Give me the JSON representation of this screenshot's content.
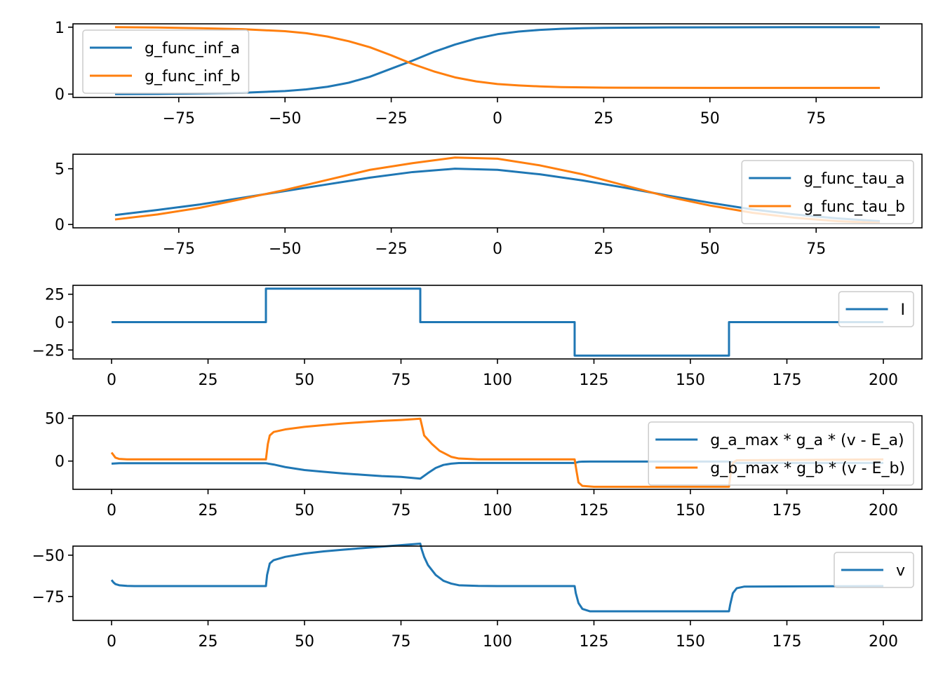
{
  "colors": {
    "series_a": "#1f77b4",
    "series_b": "#ff7f0e"
  },
  "chart_data": [
    {
      "type": "line",
      "title": "",
      "xlabel": "",
      "ylabel": "",
      "xlim": [
        -99.9,
        99.9
      ],
      "ylim": [
        -0.05,
        1.05
      ],
      "xticks": [
        -75,
        -50,
        -25,
        0,
        25,
        50,
        75
      ],
      "xtick_labels": [
        "−75",
        "−50",
        "−25",
        "0",
        "25",
        "50",
        "75"
      ],
      "yticks": [
        0,
        1
      ],
      "ytick_labels": [
        "0",
        "1"
      ],
      "legend_position": "upper left",
      "grid": false,
      "series": [
        {
          "name": "g_func_inf_a",
          "color": "#1f77b4",
          "x": [
            -90,
            -80,
            -70,
            -60,
            -50,
            -45,
            -40,
            -35,
            -30,
            -25,
            -20,
            -15,
            -10,
            -5,
            0,
            5,
            10,
            15,
            20,
            25,
            30,
            40,
            50,
            60,
            70,
            80,
            90
          ],
          "y": [
            0.0,
            0.003,
            0.01,
            0.02,
            0.045,
            0.07,
            0.11,
            0.17,
            0.26,
            0.38,
            0.5,
            0.63,
            0.74,
            0.83,
            0.895,
            0.935,
            0.96,
            0.975,
            0.985,
            0.99,
            0.993,
            0.996,
            0.998,
            0.999,
            1.0,
            1.0,
            1.0
          ]
        },
        {
          "name": "g_func_inf_b",
          "color": "#ff7f0e",
          "x": [
            -90,
            -80,
            -70,
            -60,
            -50,
            -45,
            -40,
            -35,
            -30,
            -25,
            -20,
            -15,
            -10,
            -5,
            0,
            5,
            10,
            15,
            20,
            25,
            30,
            40,
            50,
            60,
            70,
            80,
            90
          ],
          "y": [
            1.0,
            0.995,
            0.985,
            0.97,
            0.94,
            0.91,
            0.86,
            0.79,
            0.7,
            0.58,
            0.45,
            0.34,
            0.25,
            0.19,
            0.15,
            0.13,
            0.115,
            0.105,
            0.1,
            0.097,
            0.095,
            0.094,
            0.093,
            0.093,
            0.093,
            0.093,
            0.093
          ]
        }
      ]
    },
    {
      "type": "line",
      "title": "",
      "xlabel": "",
      "ylabel": "",
      "xlim": [
        -99.9,
        99.9
      ],
      "ylim": [
        -0.3,
        6.3
      ],
      "xticks": [
        -75,
        -50,
        -25,
        0,
        25,
        50,
        75
      ],
      "xtick_labels": [
        "−75",
        "−50",
        "−25",
        "0",
        "25",
        "50",
        "75"
      ],
      "yticks": [
        0,
        5
      ],
      "ytick_labels": [
        "0",
        "5"
      ],
      "legend_position": "upper right",
      "grid": false,
      "series": [
        {
          "name": "g_func_tau_a",
          "color": "#1f77b4",
          "x": [
            -90,
            -80,
            -70,
            -60,
            -50,
            -40,
            -30,
            -20,
            -10,
            0,
            10,
            20,
            30,
            40,
            50,
            60,
            70,
            80,
            90
          ],
          "y": [
            0.85,
            1.3,
            1.8,
            2.4,
            3.0,
            3.6,
            4.2,
            4.7,
            5.0,
            4.9,
            4.5,
            3.95,
            3.3,
            2.6,
            1.95,
            1.35,
            0.9,
            0.55,
            0.3
          ]
        },
        {
          "name": "g_func_tau_b",
          "color": "#ff7f0e",
          "x": [
            -90,
            -80,
            -70,
            -60,
            -50,
            -40,
            -30,
            -20,
            -10,
            0,
            10,
            20,
            30,
            40,
            50,
            60,
            70,
            80,
            90
          ],
          "y": [
            0.45,
            0.9,
            1.5,
            2.3,
            3.1,
            4.0,
            4.9,
            5.5,
            6.0,
            5.9,
            5.3,
            4.5,
            3.5,
            2.5,
            1.7,
            1.05,
            0.6,
            0.3,
            0.15
          ]
        }
      ]
    },
    {
      "type": "line",
      "title": "",
      "xlabel": "",
      "ylabel": "",
      "xlim": [
        -10,
        210
      ],
      "ylim": [
        -33,
        33
      ],
      "xticks": [
        0,
        25,
        50,
        75,
        100,
        125,
        150,
        175,
        200
      ],
      "xtick_labels": [
        "0",
        "25",
        "50",
        "75",
        "100",
        "125",
        "150",
        "175",
        "200"
      ],
      "yticks": [
        -25,
        0,
        25
      ],
      "ytick_labels": [
        "−25",
        "0",
        "25"
      ],
      "legend_position": "upper right",
      "grid": false,
      "series": [
        {
          "name": "I",
          "color": "#1f77b4",
          "x": [
            0,
            40,
            40,
            80,
            80,
            120,
            120,
            160,
            160,
            200
          ],
          "y": [
            0,
            0,
            30,
            30,
            0,
            0,
            -30,
            -30,
            0,
            0
          ]
        }
      ]
    },
    {
      "type": "line",
      "title": "",
      "xlabel": "",
      "ylabel": "",
      "xlim": [
        -10,
        210
      ],
      "ylim": [
        -33,
        53
      ],
      "xticks": [
        0,
        25,
        50,
        75,
        100,
        125,
        150,
        175,
        200
      ],
      "xtick_labels": [
        "0",
        "25",
        "50",
        "75",
        "100",
        "125",
        "150",
        "175",
        "200"
      ],
      "yticks": [
        0,
        50
      ],
      "ytick_labels": [
        "0",
        "50"
      ],
      "legend_position": "upper right",
      "grid": false,
      "series": [
        {
          "name": "g_a_max * g_a * (v - E_a)",
          "color": "#1f77b4",
          "x": [
            0,
            2,
            5,
            40,
            42,
            45,
            50,
            55,
            60,
            65,
            70,
            75,
            80,
            82,
            84,
            86,
            88,
            90,
            95,
            100,
            120,
            121,
            122,
            124,
            160,
            162,
            200
          ],
          "y": [
            -3,
            -2.5,
            -2.5,
            -2.5,
            -4,
            -7,
            -10.5,
            -12.5,
            -14.5,
            -16,
            -17.5,
            -18.5,
            -20.5,
            -14,
            -8,
            -4.5,
            -3,
            -2.3,
            -2.2,
            -2.2,
            -2.2,
            -1,
            -0.6,
            -0.5,
            -0.5,
            -2.2,
            -2.2
          ]
        },
        {
          "name": "g_b_max * g_b * (v - E_b)",
          "color": "#ff7f0e",
          "x": [
            0,
            1,
            2,
            4,
            40,
            40.5,
            41,
            42,
            45,
            50,
            55,
            60,
            65,
            70,
            75,
            80,
            80.5,
            81,
            83,
            85,
            88,
            90,
            95,
            120,
            120.5,
            121,
            122,
            125,
            160,
            160.5,
            161,
            162,
            200
          ],
          "y": [
            10,
            4,
            2.5,
            2,
            2,
            20,
            30,
            34,
            37,
            40,
            42,
            44,
            45.5,
            47,
            48,
            49.5,
            40,
            30,
            20,
            12,
            5,
            3,
            2,
            2,
            -12,
            -25,
            -29,
            -30,
            -30,
            -12,
            -2,
            1,
            2
          ]
        }
      ]
    },
    {
      "type": "line",
      "title": "",
      "xlabel": "",
      "ylabel": "",
      "xlim": [
        -10,
        210
      ],
      "ylim": [
        -89.5,
        -44.5
      ],
      "xticks": [
        0,
        25,
        50,
        75,
        100,
        125,
        150,
        175,
        200
      ],
      "xtick_labels": [
        "0",
        "25",
        "50",
        "75",
        "100",
        "125",
        "150",
        "175",
        "200"
      ],
      "yticks": [
        -75,
        -50
      ],
      "ytick_labels": [
        "−75",
        "−50"
      ],
      "legend_position": "upper right",
      "grid": false,
      "series": [
        {
          "name": "v",
          "color": "#1f77b4",
          "x": [
            0,
            0.5,
            1,
            2,
            4,
            6,
            40,
            40.3,
            41,
            42,
            45,
            50,
            55,
            60,
            65,
            70,
            75,
            80,
            80.3,
            81,
            82,
            84,
            86,
            88,
            90,
            95,
            100,
            120,
            120.3,
            121,
            122,
            124,
            160,
            160.3,
            161,
            162,
            164,
            200
          ],
          "y": [
            -65,
            -66.5,
            -67.5,
            -68.2,
            -68.6,
            -68.7,
            -68.7,
            -62,
            -55,
            -53,
            -51,
            -49,
            -47.7,
            -46.7,
            -45.7,
            -44.8,
            -43.9,
            -43,
            -46,
            -51,
            -56,
            -62,
            -65.5,
            -67.2,
            -68.2,
            -68.6,
            -68.7,
            -68.7,
            -73,
            -79,
            -82.5,
            -84,
            -84,
            -80,
            -73,
            -70,
            -69,
            -68.7
          ]
        }
      ]
    }
  ]
}
